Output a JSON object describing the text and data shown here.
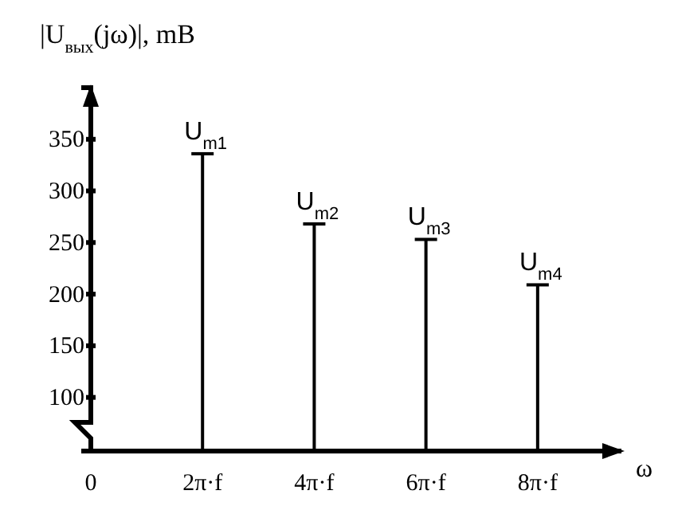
{
  "chart_data": {
    "type": "bar",
    "ylabel": "|U$_{вых}$(jω)|, mB",
    "xlabel": "ω",
    "x": [
      2,
      4,
      6,
      8
    ],
    "values": [
      336,
      268,
      253,
      209
    ],
    "color": "#000000",
    "xlim": [
      0,
      9.5
    ],
    "xticks": [
      {
        "value": 0,
        "label": "0"
      },
      {
        "value": 2,
        "label": "2π·f"
      },
      {
        "value": 4,
        "label": "4π·f"
      },
      {
        "value": 6,
        "label": "6π·f"
      },
      {
        "value": 8,
        "label": "8π·f"
      }
    ],
    "ylim": [
      48,
      400
    ],
    "yticks": [
      100,
      150,
      200,
      250,
      300,
      350
    ],
    "grid": false,
    "annotations": [
      {
        "text": "U$_{m1}$",
        "x": 2,
        "y": 336
      },
      {
        "text": "U$_{m2}$",
        "x": 4,
        "y": 268
      },
      {
        "text": "U$_{m3}$",
        "x": 6,
        "y": 253
      },
      {
        "text": "U$_{m4}$",
        "x": 8,
        "y": 209
      }
    ]
  }
}
